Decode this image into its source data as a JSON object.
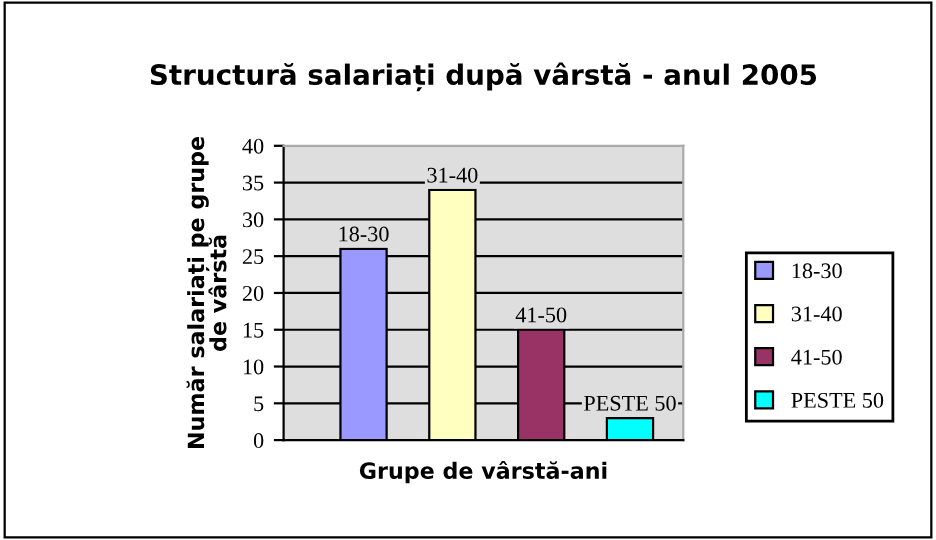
{
  "chart_data": {
    "type": "bar",
    "title": "Structură salariați după vârstă - anul 2005",
    "xlabel": "Grupe de vârstă-ani",
    "ylabel": "Număr salariați pe grupe de vârstă",
    "categories": [
      null
    ],
    "series": [
      {
        "name": "18-30",
        "color": "#9999ff",
        "values": [
          26
        ],
        "value_labels": [
          "18-30"
        ]
      },
      {
        "name": "31-40",
        "color": "#ffffc0",
        "values": [
          34
        ],
        "value_labels": [
          "31-40"
        ]
      },
      {
        "name": "41-50",
        "color": "#993366",
        "values": [
          15
        ],
        "value_labels": [
          "41-50"
        ]
      },
      {
        "name": "PESTE 50",
        "color": "#00ffff",
        "values": [
          3
        ],
        "value_labels": [
          "PESTE 50"
        ]
      }
    ],
    "ylim": [
      0,
      40
    ],
    "yticks": [
      0,
      5,
      10,
      15,
      20,
      25,
      30,
      35,
      40
    ],
    "grid": "y",
    "legend": "right"
  }
}
